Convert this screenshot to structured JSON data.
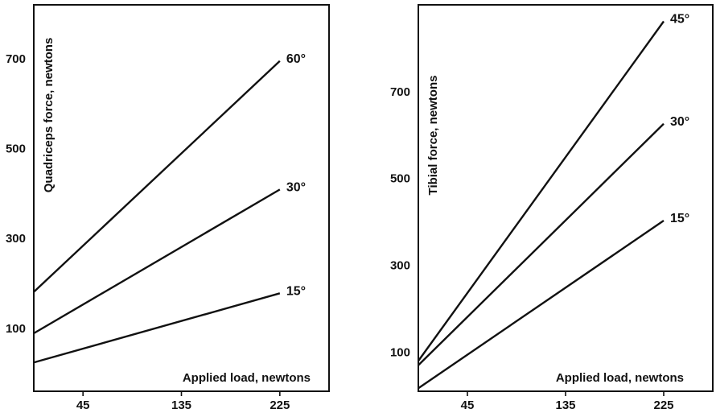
{
  "chart_data": [
    {
      "type": "line",
      "title": "",
      "xlabel": "Applied load, newtons",
      "ylabel": "Quadriceps force, newtons",
      "x_ticks": [
        "45",
        "135",
        "225"
      ],
      "y_ticks": [
        "100",
        "300",
        "500",
        "700"
      ],
      "xlim": [
        0,
        270
      ],
      "ylim": [
        -40,
        820
      ],
      "series": [
        {
          "label": "60°",
          "x": [
            0,
            225
          ],
          "y": [
            181,
            695
          ]
        },
        {
          "label": "30°",
          "x": [
            0,
            225
          ],
          "y": [
            89,
            409
          ]
        },
        {
          "label": "15°",
          "x": [
            0,
            225
          ],
          "y": [
            24,
            178
          ]
        }
      ]
    },
    {
      "type": "line",
      "title": "",
      "xlabel": "Applied load, newtons",
      "ylabel": "Tibial force, newtons",
      "x_ticks": [
        "45",
        "135",
        "225"
      ],
      "y_ticks": [
        "100",
        "300",
        "500",
        "700"
      ],
      "xlim": [
        0,
        270
      ],
      "ylim": [
        10,
        900
      ],
      "series": [
        {
          "label": "45°",
          "x": [
            0,
            225
          ],
          "y": [
            80,
            862
          ]
        },
        {
          "label": "30°",
          "x": [
            0,
            225
          ],
          "y": [
            70,
            626
          ]
        },
        {
          "label": "15°",
          "x": [
            0,
            225
          ],
          "y": [
            17,
            403
          ]
        }
      ]
    }
  ]
}
